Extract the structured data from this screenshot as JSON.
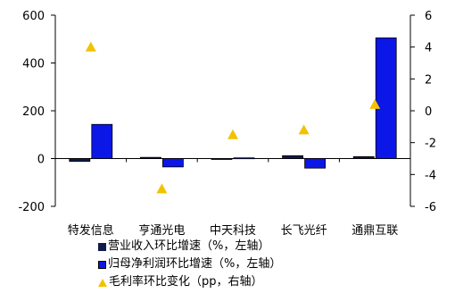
{
  "chart_data": {
    "type": "bar",
    "categories": [
      "特发信息",
      "亨通光电",
      "中天科技",
      "长飞光纤",
      "通鼎互联"
    ],
    "series": [
      {
        "name": "营业收入环比增速（%，左轴）",
        "type": "bar",
        "axis": "left",
        "color": "#111a4a",
        "values": [
          -12,
          5,
          -2,
          12,
          8
        ]
      },
      {
        "name": "归母净利润环比增速（%，左轴）",
        "type": "bar",
        "axis": "left",
        "color": "#0a17e6",
        "values": [
          143,
          -35,
          3,
          -40,
          505
        ]
      },
      {
        "name": "毛利率环比变化（pp，右轴）",
        "type": "scatter",
        "marker": "triangle",
        "axis": "right",
        "color": "#f2c200",
        "values": [
          4.0,
          -4.9,
          -1.5,
          -1.2,
          0.4
        ]
      }
    ],
    "yleft": {
      "min": -200,
      "max": 600,
      "ticks": [
        "-200",
        "0",
        "200",
        "400",
        "600"
      ]
    },
    "yright": {
      "min": -6,
      "max": 6,
      "ticks": [
        "-6",
        "-4",
        "-2",
        "0",
        "2",
        "4",
        "6"
      ]
    },
    "legend_position": "bottom"
  }
}
